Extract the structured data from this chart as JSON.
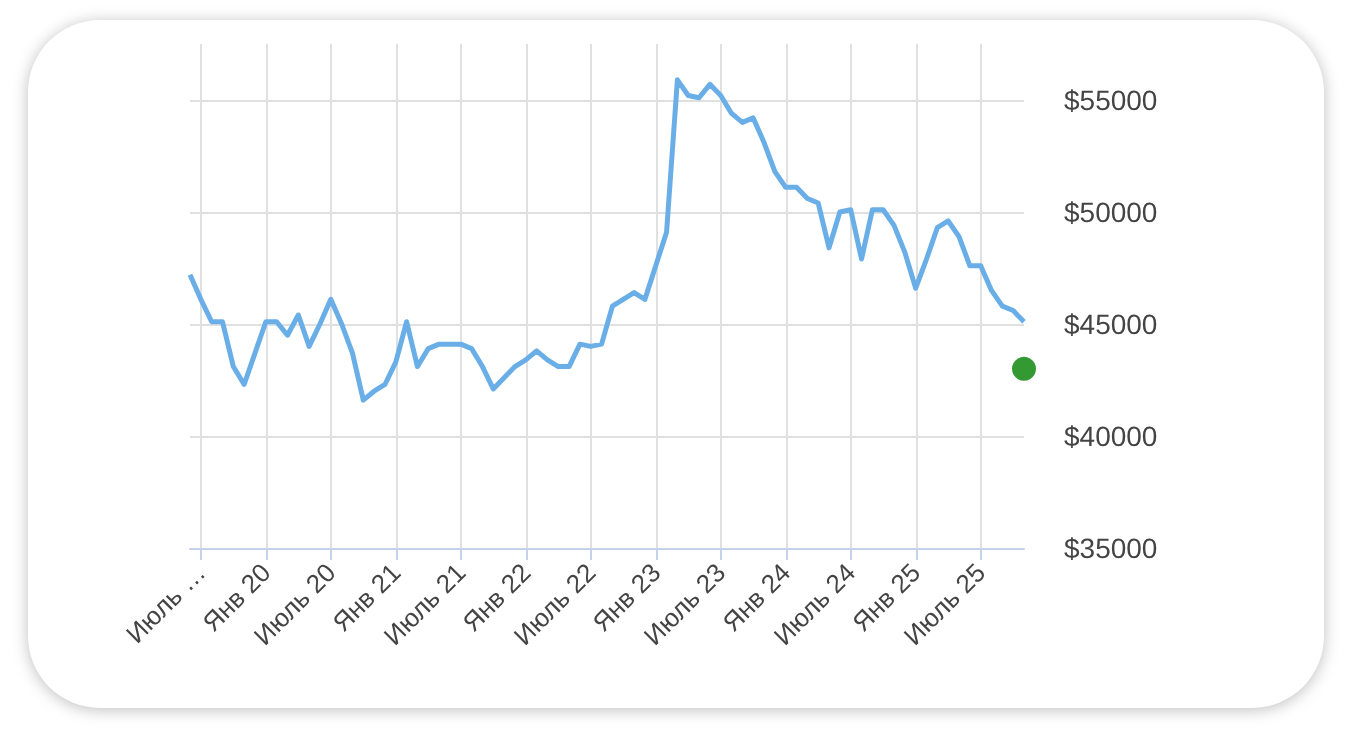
{
  "chart_data": {
    "type": "line",
    "categories": [
      null,
      "Июль …",
      null,
      null,
      null,
      null,
      null,
      "Янв 20",
      null,
      null,
      null,
      null,
      null,
      "Июль 20",
      null,
      null,
      null,
      null,
      null,
      "Янв 21",
      null,
      null,
      null,
      null,
      null,
      "Июль 21",
      null,
      null,
      null,
      null,
      null,
      "Янв 22",
      null,
      null,
      null,
      null,
      null,
      "Июль 22",
      null,
      null,
      null,
      null,
      null,
      "Янв 23",
      null,
      null,
      null,
      null,
      null,
      "Июль 23",
      null,
      null,
      null,
      null,
      null,
      "Янв 24",
      null,
      null,
      null,
      null,
      null,
      "Июль 24",
      null,
      null,
      null,
      null,
      null,
      "Янв 25",
      null,
      null,
      null,
      null,
      null,
      "Июль 25",
      null,
      null,
      null,
      null
    ],
    "series": [
      {
        "color": "#6aaee8",
        "marker": "none",
        "values": [
          47200,
          46100,
          45100,
          45100,
          43100,
          42300,
          43700,
          45100,
          45100,
          44500,
          45400,
          44000,
          45000,
          46100,
          45000,
          43700,
          41600,
          42000,
          42300,
          43300,
          45100,
          43100,
          43900,
          44100,
          44100,
          44100,
          43900,
          43100,
          42100,
          42600,
          43100,
          43400,
          43800,
          43400,
          43100,
          43100,
          44100,
          44000,
          44100,
          45800,
          46100,
          46400,
          46100,
          47600,
          49100,
          55900,
          55200,
          55100,
          55700,
          55200,
          54400,
          54000,
          54200,
          53100,
          51800,
          51100,
          51100,
          50600,
          50400,
          48400,
          50000,
          50100,
          47900,
          50100,
          50100,
          49400,
          48200,
          46600,
          47900,
          49300,
          49600,
          48900,
          47600,
          47600,
          46500,
          45800,
          45600,
          45100
        ]
      },
      {
        "type": "scatter",
        "color": "#008000",
        "marker": "circle",
        "values": [
          null,
          null,
          null,
          null,
          null,
          null,
          null,
          null,
          null,
          null,
          null,
          null,
          null,
          null,
          null,
          null,
          null,
          null,
          null,
          null,
          null,
          null,
          null,
          null,
          null,
          null,
          null,
          null,
          null,
          null,
          null,
          null,
          null,
          null,
          null,
          null,
          null,
          null,
          null,
          null,
          null,
          null,
          null,
          null,
          null,
          null,
          null,
          null,
          null,
          null,
          null,
          null,
          null,
          null,
          null,
          null,
          null,
          null,
          null,
          null,
          null,
          null,
          null,
          null,
          null,
          null,
          null,
          null,
          null,
          null,
          null,
          null,
          null,
          null,
          null,
          null,
          null,
          43000
        ]
      }
    ],
    "ylim": [
      35000,
      57500
    ],
    "yticks": [
      {
        "value": 35000,
        "label": "$35000"
      },
      {
        "value": 40000,
        "label": "$40000"
      },
      {
        "value": 45000,
        "label": "$45000"
      },
      {
        "value": 50000,
        "label": "$50000"
      },
      {
        "value": 55000,
        "label": "$55000"
      }
    ],
    "grid": true,
    "line_style": "solid"
  }
}
